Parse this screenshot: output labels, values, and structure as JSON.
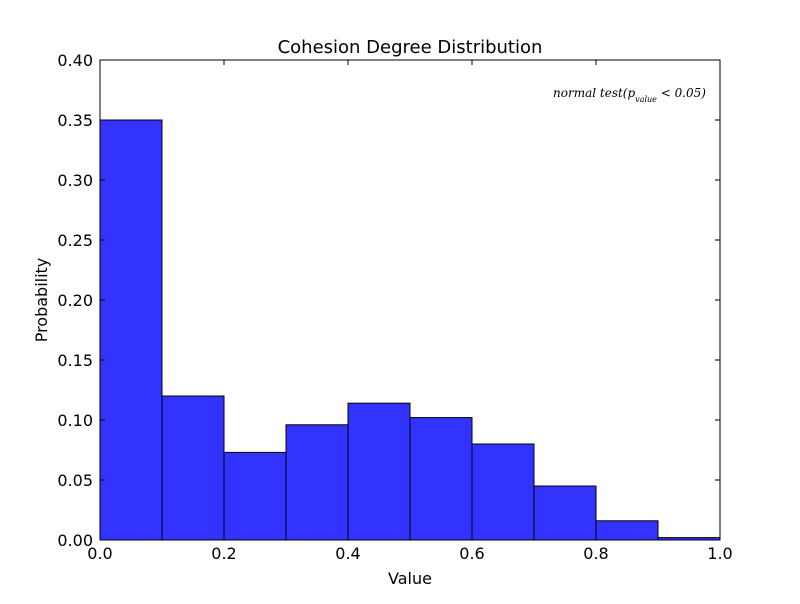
{
  "chart_data": {
    "type": "bar",
    "title": "Cohesion Degree Distribution",
    "xlabel": "Value",
    "ylabel": "Probability",
    "annotation": "normal test(p_value < 0.05)",
    "xlim": [
      0.0,
      1.0
    ],
    "ylim": [
      0.0,
      0.4
    ],
    "xticks": [
      "0.0",
      "0.2",
      "0.4",
      "0.6",
      "0.8",
      "1.0"
    ],
    "yticks": [
      "0.00",
      "0.05",
      "0.10",
      "0.15",
      "0.20",
      "0.25",
      "0.30",
      "0.35",
      "0.40"
    ],
    "bins": [
      [
        0.0,
        0.1
      ],
      [
        0.1,
        0.2
      ],
      [
        0.2,
        0.3
      ],
      [
        0.3,
        0.4
      ],
      [
        0.4,
        0.5
      ],
      [
        0.5,
        0.6
      ],
      [
        0.6,
        0.7
      ],
      [
        0.7,
        0.8
      ],
      [
        0.8,
        0.9
      ],
      [
        0.9,
        1.0
      ]
    ],
    "values": [
      0.35,
      0.12,
      0.073,
      0.096,
      0.114,
      0.102,
      0.08,
      0.045,
      0.016,
      0.002
    ],
    "bar_color": "#3333ff",
    "edge_color": "#000000",
    "grid": false,
    "legend": null
  }
}
